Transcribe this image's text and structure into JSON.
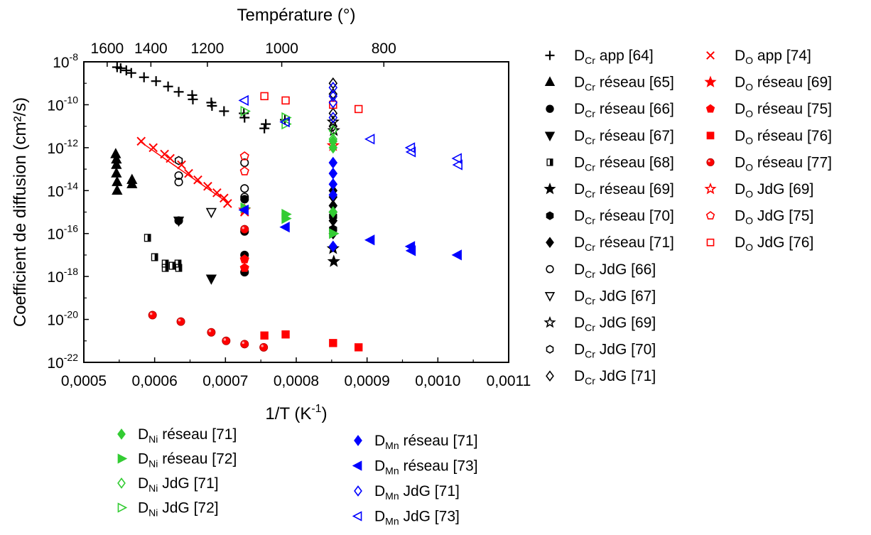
{
  "chart_data": {
    "type": "scatter",
    "xlabel": "1/T (K",
    "xlabel_sup": "-1",
    "xlabel_end": ")",
    "ylabel": "Coefficient de diffusion (cm²/s)",
    "top_axis_label": "Température (°)",
    "xlim": [
      0.0005,
      0.0011
    ],
    "ylim_log10": [
      -22,
      -8
    ],
    "y_scale": "log",
    "grid": false,
    "x_ticks": [
      0.0005,
      0.0006,
      0.0007,
      0.0008,
      0.0009,
      0.001,
      0.0011
    ],
    "x_tick_labels": [
      "0,0005",
      "0,0006",
      "0,0007",
      "0,0008",
      "0,0009",
      "0,0010",
      "0,0011"
    ],
    "y_ticks_exp": [
      -8,
      -10,
      -12,
      -14,
      -16,
      -18,
      -20,
      -22
    ],
    "y_tick_base": "10",
    "top_ticks_inv": [
      0.000533,
      0.0005947,
      0.0006745,
      0.0007795,
      0.0009237
    ],
    "top_tick_labels": [
      "1600",
      "1400",
      "1200",
      "1000",
      "800"
    ],
    "series": [
      {
        "name": "D_Cr app [64]",
        "main": "D",
        "sub": "Cr",
        "rest": " app [64]",
        "marker": "plus",
        "color": "#000000",
        "points": [
          [
            0.000547,
            -8.25
          ],
          [
            0.000552,
            -8.3
          ],
          [
            0.00056,
            -8.4
          ],
          [
            0.000567,
            -8.52
          ],
          [
            0.000585,
            -8.72
          ],
          [
            0.000602,
            -8.9
          ],
          [
            0.000619,
            -9.15
          ],
          [
            0.000634,
            -9.4
          ],
          [
            0.000653,
            -9.55
          ],
          [
            0.000654,
            -9.75
          ],
          [
            0.00068,
            -9.9
          ],
          [
            0.000681,
            -10.05
          ],
          [
            0.000698,
            -10.3
          ],
          [
            0.000726,
            -10.4
          ],
          [
            0.000727,
            -10.6
          ],
          [
            0.000755,
            -11.1
          ],
          [
            0.000757,
            -10.9
          ],
          [
            0.000784,
            -10.7
          ]
        ]
      },
      {
        "name": "D_Cr réseau [65]",
        "main": "D",
        "sub": "Cr",
        "rest": " réseau [65]",
        "marker": "triangle-up",
        "color": "#000000",
        "points": [
          [
            0.000545,
            -12.3
          ],
          [
            0.000546,
            -12.55
          ],
          [
            0.000546,
            -12.8
          ],
          [
            0.000546,
            -13.2
          ],
          [
            0.000547,
            -13.6
          ],
          [
            0.000547,
            -14.0
          ],
          [
            0.000568,
            -13.5
          ],
          [
            0.000568,
            -13.7
          ]
        ]
      },
      {
        "name": "D_Cr réseau [66]",
        "main": "D",
        "sub": "Cr",
        "rest": " réseau [66]",
        "marker": "circle",
        "color": "#000000",
        "points": [
          [
            0.000634,
            -15.4
          ],
          [
            0.000727,
            -14.4
          ],
          [
            0.000727,
            -15.9
          ],
          [
            0.000727,
            -17.0
          ],
          [
            0.000727,
            -17.8
          ]
        ]
      },
      {
        "name": "D_Cr réseau [67]",
        "main": "D",
        "sub": "Cr",
        "rest": " réseau [67]",
        "marker": "triangle-down",
        "color": "#000000",
        "points": [
          [
            0.00068,
            -18.1
          ]
        ]
      },
      {
        "name": "D_Cr réseau [68]",
        "main": "D",
        "sub": "Cr",
        "rest": " réseau [68]",
        "marker": "half-square",
        "color": "#000000",
        "points": [
          [
            0.00059,
            -16.2
          ],
          [
            0.0006,
            -17.1
          ],
          [
            0.000615,
            -17.4
          ],
          [
            0.000615,
            -17.6
          ],
          [
            0.000625,
            -17.5
          ],
          [
            0.000633,
            -17.4
          ],
          [
            0.000634,
            -17.6
          ]
        ]
      },
      {
        "name": "D_Cr réseau [69]",
        "main": "D",
        "sub": "Cr",
        "rest": " réseau [69]",
        "marker": "star",
        "color": "#000000",
        "points": [
          [
            0.000852,
            -16.7
          ],
          [
            0.000853,
            -17.3
          ]
        ]
      },
      {
        "name": "D_Cr réseau [70]",
        "main": "D",
        "sub": "Cr",
        "rest": " réseau [70]",
        "marker": "hexagon",
        "color": "#000000",
        "points": [
          [
            0.000852,
            -15.2
          ],
          [
            0.000852,
            -15.8
          ]
        ]
      },
      {
        "name": "D_Cr réseau [71]",
        "main": "D",
        "sub": "Cr",
        "rest": " réseau [71]",
        "marker": "diamond",
        "color": "#000000",
        "points": [
          [
            0.000852,
            -14.0
          ],
          [
            0.000852,
            -14.3
          ],
          [
            0.000852,
            -14.7
          ],
          [
            0.000852,
            -15.0
          ],
          [
            0.000852,
            -15.4
          ],
          [
            0.000852,
            -16.0
          ]
        ]
      },
      {
        "name": "D_Cr JdG [66]",
        "main": "D",
        "sub": "Cr",
        "rest": " JdG [66]",
        "marker": "circle-open",
        "color": "#000000",
        "points": [
          [
            0.000634,
            -13.3
          ],
          [
            0.000634,
            -13.6
          ],
          [
            0.000727,
            -12.7
          ],
          [
            0.000727,
            -13.9
          ],
          [
            0.000727,
            -14.3
          ]
        ]
      },
      {
        "name": "D_Cr JdG [67]",
        "main": "D",
        "sub": "Cr",
        "rest": " JdG [67]",
        "marker": "triangle-down-open",
        "color": "#000000",
        "points": [
          [
            0.000634,
            -15.4
          ],
          [
            0.00068,
            -15.0
          ]
        ]
      },
      {
        "name": "D_Cr JdG [69]",
        "main": "D",
        "sub": "Cr",
        "rest": " JdG [69]",
        "marker": "star-open",
        "color": "#000000",
        "points": [
          [
            0.000852,
            -10.8
          ],
          [
            0.000853,
            -11.2
          ]
        ]
      },
      {
        "name": "D_Cr JdG [70]",
        "main": "D",
        "sub": "Cr",
        "rest": " JdG [70]",
        "marker": "hexagon-open",
        "color": "#000000",
        "points": [
          [
            0.000634,
            -12.6
          ]
        ]
      },
      {
        "name": "D_Cr JdG [71]",
        "main": "D",
        "sub": "Cr",
        "rest": " JdG [71]",
        "marker": "diamond-open",
        "color": "#000000",
        "points": [
          [
            0.000852,
            -9.0
          ],
          [
            0.000852,
            -9.5
          ],
          [
            0.000852,
            -10.4
          ],
          [
            0.000852,
            -11.0
          ]
        ]
      },
      {
        "name": "D_O app [74]",
        "main": "D",
        "sub": "O",
        "rest": " app [74]",
        "marker": "x",
        "color": "#ff0000",
        "points": [
          [
            0.000581,
            -11.7
          ],
          [
            0.000598,
            -12.0
          ],
          [
            0.000614,
            -12.3
          ],
          [
            0.000622,
            -12.5
          ],
          [
            0.000638,
            -12.8
          ],
          [
            0.000648,
            -13.2
          ],
          [
            0.000661,
            -13.5
          ],
          [
            0.000675,
            -13.8
          ],
          [
            0.000688,
            -14.1
          ],
          [
            0.000698,
            -14.35
          ],
          [
            0.000703,
            -14.6
          ],
          [
            0.000727,
            -15.0
          ]
        ]
      },
      {
        "name": "D_O réseau [69]",
        "main": "D",
        "sub": "O",
        "rest": " réseau [69]",
        "marker": "star",
        "color": "#ff0000",
        "points": [
          [
            0.000727,
            -14.9
          ]
        ]
      },
      {
        "name": "D_O réseau [75]",
        "main": "D",
        "sub": "O",
        "rest": " réseau [75]",
        "marker": "pentagon",
        "color": "#ff0000",
        "points": [
          [
            0.000727,
            -17.2
          ],
          [
            0.000727,
            -17.6
          ]
        ]
      },
      {
        "name": "D_O réseau [76]",
        "main": "D",
        "sub": "O",
        "rest": " réseau [76]",
        "marker": "square",
        "color": "#ff0000",
        "points": [
          [
            0.000755,
            -20.75
          ],
          [
            0.000785,
            -20.7
          ],
          [
            0.000852,
            -21.1
          ],
          [
            0.000888,
            -21.3
          ]
        ]
      },
      {
        "name": "D_O réseau [77]",
        "main": "D",
        "sub": "O",
        "rest": " réseau [77]",
        "marker": "sphere",
        "color": "#ff0000",
        "points": [
          [
            0.000597,
            -19.8
          ],
          [
            0.000637,
            -20.1
          ],
          [
            0.00068,
            -20.6
          ],
          [
            0.000701,
            -21.0
          ],
          [
            0.000727,
            -21.15
          ],
          [
            0.000754,
            -21.3
          ],
          [
            0.000727,
            -15.8
          ]
        ]
      },
      {
        "name": "D_O JdG [69]",
        "main": "D",
        "sub": "O",
        "rest": " JdG [69]",
        "marker": "star-open",
        "color": "#ff0000",
        "points": [
          [
            0.000852,
            -11.9
          ]
        ]
      },
      {
        "name": "D_O JdG [75]",
        "main": "D",
        "sub": "O",
        "rest": " JdG [75]",
        "marker": "pentagon-open",
        "color": "#ff0000",
        "points": [
          [
            0.000727,
            -12.4
          ],
          [
            0.000727,
            -13.1
          ]
        ]
      },
      {
        "name": "D_O JdG [76]",
        "main": "D",
        "sub": "O",
        "rest": " JdG [76]",
        "marker": "square-open",
        "color": "#ff0000",
        "points": [
          [
            0.000755,
            -9.6
          ],
          [
            0.000785,
            -9.8
          ],
          [
            0.000852,
            -10.0
          ],
          [
            0.000888,
            -10.2
          ]
        ]
      },
      {
        "name": "D_Ni réseau [71]",
        "main": "D",
        "sub": "Ni",
        "rest": " réseau [71]",
        "marker": "diamond",
        "color": "#33cc33",
        "points": [
          [
            0.000852,
            -11.7
          ],
          [
            0.000852,
            -12.0
          ],
          [
            0.000852,
            -15.0
          ]
        ]
      },
      {
        "name": "D_Ni réseau [72]",
        "main": "D",
        "sub": "Ni",
        "rest": " réseau [72]",
        "marker": "triangle-right",
        "color": "#33cc33",
        "points": [
          [
            0.000727,
            -14.8
          ],
          [
            0.000785,
            -15.1
          ],
          [
            0.000785,
            -15.3
          ],
          [
            0.000852,
            -16.0
          ]
        ]
      },
      {
        "name": "D_Ni JdG [71]",
        "main": "D",
        "sub": "Ni",
        "rest": " JdG [71]",
        "marker": "diamond-open",
        "color": "#33cc33",
        "points": [
          [
            0.000852,
            -11.2
          ],
          [
            0.000852,
            -11.6
          ]
        ]
      },
      {
        "name": "D_Ni JdG [72]",
        "main": "D",
        "sub": "Ni",
        "rest": " JdG [72]",
        "marker": "triangle-right-open",
        "color": "#33cc33",
        "points": [
          [
            0.000727,
            -10.3
          ],
          [
            0.000785,
            -10.6
          ],
          [
            0.000785,
            -10.9
          ]
        ]
      },
      {
        "name": "D_Mn réseau [71]",
        "main": "D",
        "sub": "Mn",
        "rest": " réseau [71]",
        "marker": "diamond",
        "color": "#0000ff",
        "points": [
          [
            0.000852,
            -12.7
          ],
          [
            0.000852,
            -13.2
          ],
          [
            0.000852,
            -13.7
          ],
          [
            0.000852,
            -14.2
          ],
          [
            0.000852,
            -16.6
          ]
        ]
      },
      {
        "name": "D_Mn réseau [73]",
        "main": "D",
        "sub": "Mn",
        "rest": " réseau [73]",
        "marker": "triangle-left",
        "color": "#0000ff",
        "points": [
          [
            0.000727,
            -14.9
          ],
          [
            0.000785,
            -15.7
          ],
          [
            0.000905,
            -16.3
          ],
          [
            0.000962,
            -16.6
          ],
          [
            0.000963,
            -16.8
          ],
          [
            0.001028,
            -17.0
          ]
        ]
      },
      {
        "name": "D_Mn JdG [71]",
        "main": "D",
        "sub": "Mn",
        "rest": " JdG [71]",
        "marker": "diamond-open",
        "color": "#0000ff",
        "points": [
          [
            0.000852,
            -9.2
          ],
          [
            0.000852,
            -9.6
          ],
          [
            0.000852,
            -9.9
          ],
          [
            0.000852,
            -10.6
          ]
        ]
      },
      {
        "name": "D_Mn JdG [73]",
        "main": "D",
        "sub": "Mn",
        "rest": " JdG [73]",
        "marker": "triangle-left-open",
        "color": "#0000ff",
        "points": [
          [
            0.000727,
            -9.8
          ],
          [
            0.000785,
            -10.8
          ],
          [
            0.000905,
            -11.6
          ],
          [
            0.000962,
            -12.0
          ],
          [
            0.000963,
            -12.2
          ],
          [
            0.001028,
            -12.5
          ],
          [
            0.001029,
            -12.8
          ]
        ]
      }
    ]
  }
}
